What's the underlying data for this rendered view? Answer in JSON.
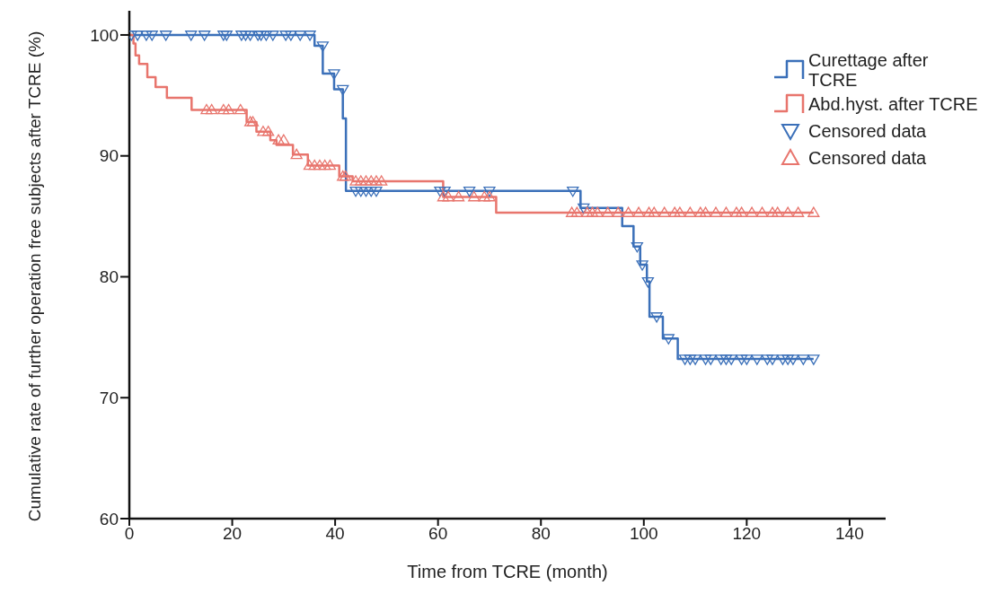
{
  "chart_data": {
    "type": "step",
    "xlabel": "Time from TCRE (month)",
    "ylabel": "Cumulative rate of further operation free subjects after TCRE (%)",
    "xlim": [
      0,
      147
    ],
    "xticks": [
      0,
      20,
      40,
      60,
      80,
      100,
      120,
      140
    ],
    "ylim": [
      60,
      102
    ],
    "yticks": [
      60,
      70,
      80,
      90,
      100
    ],
    "grid": false,
    "legend": "top right",
    "line_style": "solid",
    "series": [
      {
        "name": "Curettage after TCRE",
        "color": "#3b70b9",
        "marker": "none",
        "x": [
          0,
          36,
          37.6,
          39.8,
          41.5,
          42.1,
          87.7,
          95.8,
          98,
          99.3,
          100.6,
          101.1,
          103.7,
          106.6,
          133
        ],
        "values": [
          100,
          99.1,
          96.8,
          95.5,
          93.1,
          87.1,
          85.7,
          84.2,
          82.5,
          81,
          79.6,
          76.7,
          74.9,
          73.2,
          73.2
        ]
      },
      {
        "name": "Abd.hyst. after TCRE",
        "color": "#e8756d",
        "marker": "none",
        "x": [
          0,
          0.8,
          1.2,
          1.9,
          3.5,
          5.1,
          7.3,
          12.1,
          22.8,
          24.7,
          27.4,
          28.6,
          31.8,
          34.7,
          40.8,
          43.4,
          61,
          71.3,
          133
        ],
        "values": [
          100,
          99.3,
          98.3,
          97.6,
          96.5,
          95.7,
          94.8,
          93.8,
          92.8,
          92,
          91.3,
          90.9,
          90.1,
          89.2,
          88.3,
          87.9,
          86.6,
          85.3,
          85.3
        ]
      },
      {
        "name": "Censored data",
        "type": "scatter",
        "color": "#3b70b9",
        "marker": "triangle",
        "x": [
          0.4,
          1.6,
          3.3,
          4.4,
          7.1,
          12,
          14.6,
          18.3,
          18.9,
          21.8,
          22.6,
          23.5,
          25,
          25.6,
          26.6,
          27.9,
          30.4,
          31.4,
          33.2,
          35.1,
          37.6,
          39.8,
          41.5,
          44,
          45,
          46,
          47,
          48,
          60.4,
          61.3,
          66.1,
          70,
          86.2,
          88.3,
          98.7,
          99.7,
          100.8,
          102.5,
          104.8,
          108,
          109,
          110,
          112,
          113,
          115,
          116,
          117,
          119,
          120,
          122,
          124,
          125,
          127,
          128,
          129,
          131,
          133
        ],
        "values": [
          100,
          100,
          100,
          100,
          100,
          100,
          100,
          100,
          100,
          100,
          100,
          100,
          100,
          100,
          100,
          100,
          100,
          100,
          100,
          100,
          99.1,
          96.8,
          95.5,
          87.1,
          87.1,
          87.1,
          87.1,
          87.1,
          87.1,
          87.1,
          87.1,
          87.1,
          87.1,
          85.7,
          82.5,
          81,
          79.6,
          76.7,
          74.9,
          73.2,
          73.2,
          73.2,
          73.2,
          73.2,
          73.2,
          73.2,
          73.2,
          73.2,
          73.2,
          73.2,
          73.2,
          73.2,
          73.2,
          73.2,
          73.2,
          73.2,
          73.2
        ]
      },
      {
        "name": "Censored data",
        "type": "scatter",
        "color": "#e8756d",
        "marker": "triangle",
        "x": [
          15,
          16,
          18.3,
          19.3,
          21.6,
          23.5,
          24,
          26,
          27,
          29,
          30,
          32.5,
          35,
          36,
          37,
          38,
          39,
          41.5,
          42,
          44,
          45,
          46,
          47,
          48,
          49,
          61,
          62,
          64,
          67,
          69,
          70,
          86,
          87,
          89,
          90,
          91,
          93,
          95,
          97,
          99,
          101,
          102,
          104,
          106,
          107,
          109,
          111,
          112,
          114,
          116,
          118,
          119,
          121,
          123,
          125,
          126,
          128,
          130,
          133
        ],
        "values": [
          93.8,
          93.8,
          93.8,
          93.8,
          93.8,
          92.8,
          92.8,
          92,
          92,
          91.3,
          91.3,
          90.1,
          89.2,
          89.2,
          89.2,
          89.2,
          89.2,
          88.3,
          88.3,
          87.9,
          87.9,
          87.9,
          87.9,
          87.9,
          87.9,
          86.6,
          86.6,
          86.6,
          86.6,
          86.6,
          86.6,
          85.3,
          85.3,
          85.3,
          85.3,
          85.3,
          85.3,
          85.3,
          85.3,
          85.3,
          85.3,
          85.3,
          85.3,
          85.3,
          85.3,
          85.3,
          85.3,
          85.3,
          85.3,
          85.3,
          85.3,
          85.3,
          85.3,
          85.3,
          85.3,
          85.3,
          85.3,
          85.3,
          85.3
        ]
      }
    ]
  }
}
